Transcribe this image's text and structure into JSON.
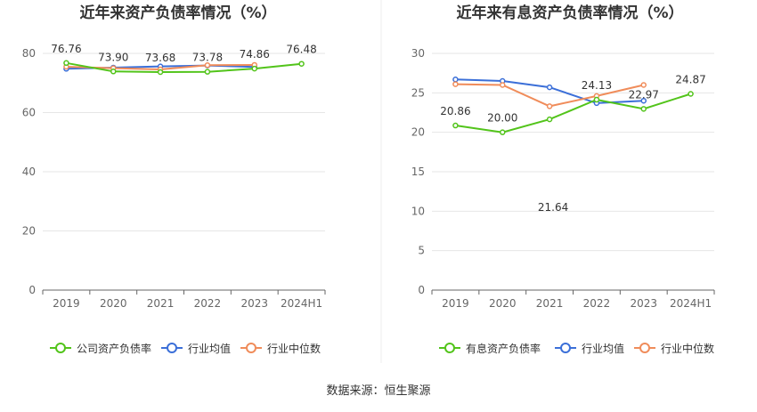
{
  "source_note": "数据来源：恒生聚源",
  "colors": {
    "company": "#52c41a",
    "industry_avg": "#3b6fd8",
    "industry_median": "#f08c5a",
    "grid": "#e6e6e6",
    "axis": "#666666",
    "divider": "#eeeeee"
  },
  "chart_data": [
    {
      "type": "line",
      "title": "近年来资产负债率情况（%）",
      "categories": [
        "2019",
        "2020",
        "2021",
        "2022",
        "2023",
        "2024H1"
      ],
      "ylim": [
        0,
        80
      ],
      "yticks": [
        0,
        20,
        40,
        60,
        80
      ],
      "grid": true,
      "legend_position": "bottom",
      "series": [
        {
          "name": "公司资产负债率",
          "color_key": "company",
          "values": [
            76.76,
            73.9,
            73.68,
            73.78,
            74.86,
            76.48
          ],
          "labels": [
            "76.76",
            "73.90",
            "73.68",
            "73.78",
            "74.86",
            "76.48"
          ]
        },
        {
          "name": "行业均值",
          "color_key": "industry_avg",
          "values": [
            74.8,
            75.2,
            75.6,
            75.9,
            75.4,
            null
          ]
        },
        {
          "name": "行业中位数",
          "color_key": "industry_median",
          "values": [
            75.5,
            75.0,
            74.6,
            76.0,
            76.1,
            null
          ]
        }
      ]
    },
    {
      "type": "line",
      "title": "近年来有息资产负债率情况（%）",
      "categories": [
        "2019",
        "2020",
        "2021",
        "2022",
        "2023",
        "2024H1"
      ],
      "ylim": [
        0,
        30
      ],
      "yticks": [
        0,
        5,
        10,
        15,
        20,
        25,
        30
      ],
      "grid": true,
      "legend_position": "bottom",
      "series": [
        {
          "name": "有息资产负债率",
          "color_key": "company",
          "values": [
            20.86,
            20.0,
            21.64,
            24.13,
            22.97,
            24.87
          ],
          "labels": [
            "20.86",
            "20.00",
            "21.64",
            "24.13",
            "22.97",
            "24.87"
          ]
        },
        {
          "name": "行业均值",
          "color_key": "industry_avg",
          "values": [
            26.7,
            26.5,
            25.7,
            23.7,
            24.0,
            null
          ]
        },
        {
          "name": "行业中位数",
          "color_key": "industry_median",
          "values": [
            26.1,
            26.0,
            23.3,
            24.6,
            26.0,
            null
          ]
        }
      ]
    }
  ]
}
